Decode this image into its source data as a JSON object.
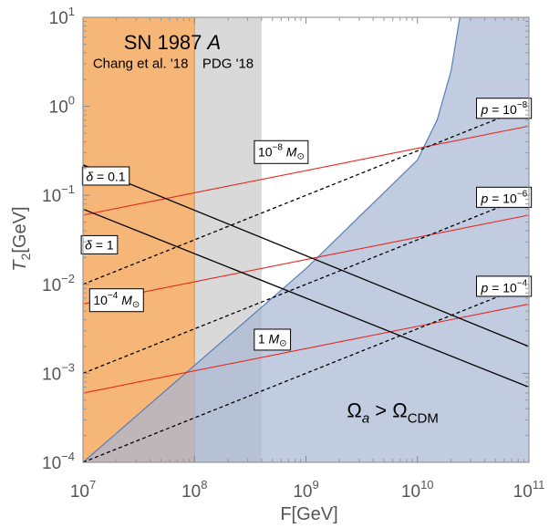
{
  "chart_data": {
    "type": "line",
    "xlabel": "F[GeV]",
    "ylabel": "T2[GeV]",
    "ylabel_parts": {
      "main": "T",
      "sub": "2",
      "unit": "[GeV]"
    },
    "x_scale": "log",
    "y_scale": "log",
    "xlim": [
      10000000,
      100000000000
    ],
    "ylim": [
      0.0001,
      10
    ],
    "x_ticks": [
      {
        "value": 10000000,
        "mantissa": "10",
        "exp": "7"
      },
      {
        "value": 100000000,
        "mantissa": "10",
        "exp": "8"
      },
      {
        "value": 1000000000,
        "mantissa": "10",
        "exp": "9"
      },
      {
        "value": 10000000000,
        "mantissa": "10",
        "exp": "10"
      },
      {
        "value": 100000000000,
        "mantissa": "10",
        "exp": "11"
      }
    ],
    "y_ticks": [
      {
        "value": 0.0001,
        "mantissa": "10",
        "exp": "−4"
      },
      {
        "value": 0.001,
        "mantissa": "10",
        "exp": "−3"
      },
      {
        "value": 0.01,
        "mantissa": "10",
        "exp": "−2"
      },
      {
        "value": 0.1,
        "mantissa": "10",
        "exp": "−1"
      },
      {
        "value": 1,
        "mantissa": "10",
        "exp": "0"
      },
      {
        "value": 10,
        "mantissa": "10",
        "exp": "1"
      }
    ],
    "regions": [
      {
        "name": "sn",
        "x": [
          10000000,
          100000000
        ],
        "color": "#f5b678",
        "edge_color": "#f0a050",
        "label": "Chang et al. '18",
        "label_y": 2.7
      },
      {
        "name": "pdg",
        "x": [
          100000000,
          400000000
        ],
        "color": "#d9d9d9",
        "label": "PDG '18",
        "label_y": 2.7
      },
      {
        "name": "cdm",
        "color": "#a7b7d3",
        "opacity": 0.7,
        "edge_color": "#5a7fb5",
        "boundary_x": [
          10000000,
          1000000000,
          10000000000,
          15000000000,
          20000000000,
          24000000000
        ],
        "boundary_y": [
          0.0001,
          0.015,
          0.25,
          0.7,
          2.5,
          10
        ],
        "label_main": "Ω",
        "label_sub1": "a",
        "label_op": " > Ω",
        "label_sub2": "CDM",
        "label_x": 6000000000,
        "label_y": 0.00032
      }
    ],
    "group_title": "SN 1987 A",
    "group_title_parts": {
      "main": "SN 1987 ",
      "italic": "A"
    },
    "series": [
      {
        "kind": "red",
        "x": [
          10000000,
          100000000000
        ],
        "y": [
          0.06,
          0.6
        ],
        "color": "#e8281e",
        "label_main": "10",
        "label_exp": "−8",
        "label_tail": " M",
        "label_sym": "⊙",
        "label_x": 600000000,
        "label_y": 0.3
      },
      {
        "kind": "red",
        "x": [
          10000000,
          100000000000
        ],
        "y": [
          0.006,
          0.06
        ],
        "color": "#e8281e",
        "label_main": "10",
        "label_exp": "−4",
        "label_tail": " M",
        "label_sym": "⊙",
        "label_x": 20000000,
        "label_y": 0.0065
      },
      {
        "kind": "red",
        "x": [
          10000000,
          100000000000
        ],
        "y": [
          0.0006,
          0.006
        ],
        "color": "#e8281e",
        "label_main": "1",
        "label_exp": "",
        "label_tail": " M",
        "label_sym": "⊙",
        "label_x": 500000000,
        "label_y": 0.0024
      },
      {
        "kind": "dashed",
        "x": [
          10000000,
          100000000000
        ],
        "y": [
          0.01,
          1
        ],
        "color": "#000000",
        "label_var": "p",
        "label_eq": " = 10",
        "label_exp": "−8",
        "label_x": 60000000000,
        "label_y": 0.9
      },
      {
        "kind": "dashed",
        "x": [
          10000000,
          100000000000
        ],
        "y": [
          0.001,
          0.1
        ],
        "color": "#000000",
        "label_var": "p",
        "label_eq": " = 10",
        "label_exp": "−6",
        "label_x": 60000000000,
        "label_y": 0.09
      },
      {
        "kind": "dashed",
        "x": [
          10000000,
          100000000000
        ],
        "y": [
          0.0001,
          0.01
        ],
        "color": "#000000",
        "label_var": "p",
        "label_eq": " = 10",
        "label_exp": "−4",
        "label_x": 60000000000,
        "label_y": 0.009
      },
      {
        "kind": "solid",
        "x": [
          10000000,
          100000000000
        ],
        "y": [
          0.22,
          0.002
        ],
        "color": "#000000",
        "label_var": "δ",
        "label_eq": " = 0.1",
        "label_x": 16000000,
        "label_y": 0.16
      },
      {
        "kind": "solid",
        "x": [
          10000000,
          100000000000
        ],
        "y": [
          0.07,
          0.0007
        ],
        "color": "#000000",
        "label_var": "δ",
        "label_eq": " = 1",
        "label_x": 14000000,
        "label_y": 0.027
      }
    ]
  }
}
